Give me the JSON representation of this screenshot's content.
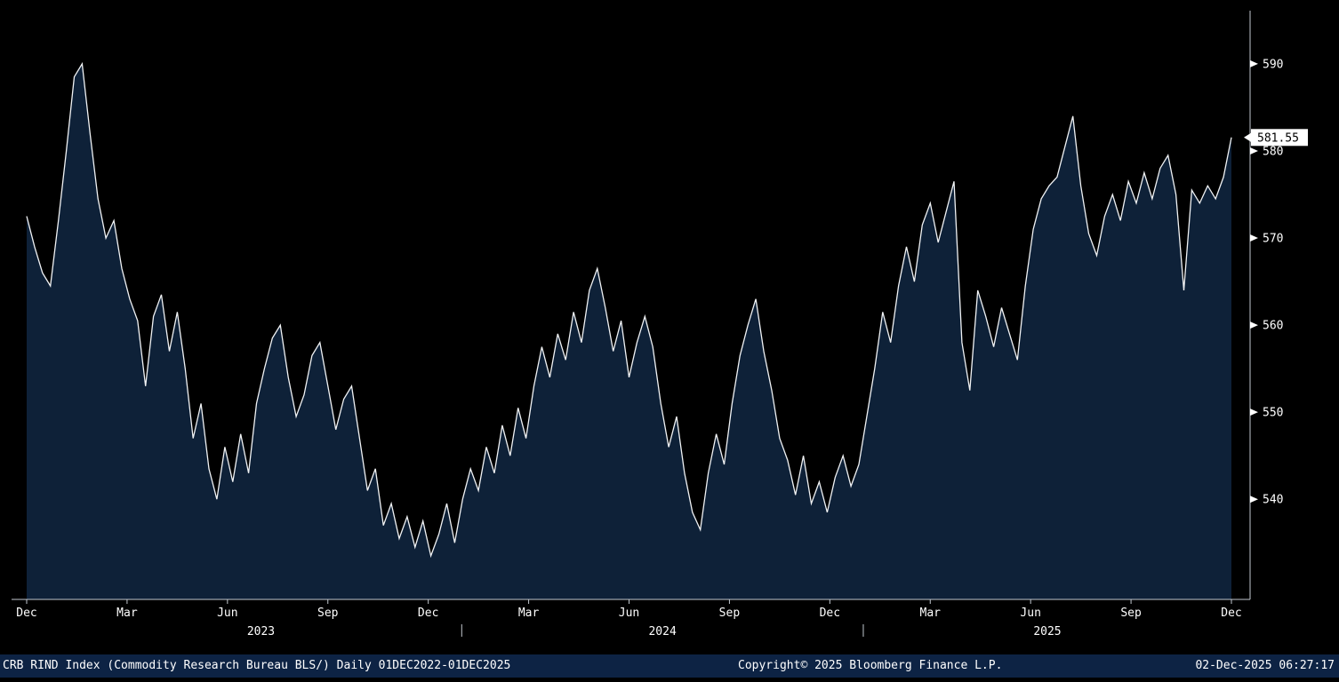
{
  "chart_data": {
    "type": "line",
    "title": "CRB RIND Index (Commodity Research Bureau BLS/) Daily 01DEC2022-01DEC2025",
    "grid": false,
    "legend_position": "none",
    "ylim": [
      528.5,
      595.5
    ],
    "y_ticks": [
      540,
      550,
      560,
      570,
      580,
      590
    ],
    "x_tick_labels": [
      "Dec",
      "Mar",
      "Jun",
      "Sep",
      "Dec",
      "Mar",
      "Jun",
      "Sep",
      "Dec",
      "Mar",
      "Jun",
      "Sep",
      "Dec"
    ],
    "x_tick_month_offsets": [
      0,
      3,
      6,
      9,
      12,
      15,
      18,
      21,
      24,
      27,
      30,
      33,
      36
    ],
    "year_labels": [
      {
        "text": "2023",
        "center_month": 7
      },
      {
        "text": "2024",
        "center_month": 19
      },
      {
        "text": "2025",
        "center_month": 30.5
      }
    ],
    "year_separator_months": [
      13,
      25
    ],
    "total_months": 36,
    "last_value": 581.55,
    "last_value_label": "581.55",
    "series": [
      {
        "name": "CRB RIND Index",
        "values": [
          572.5,
          569.0,
          566.0,
          564.5,
          572.0,
          580.0,
          588.5,
          590.0,
          582.0,
          574.5,
          570.0,
          572.0,
          566.5,
          563.0,
          560.5,
          553.0,
          561.0,
          563.5,
          557.0,
          561.5,
          555.0,
          547.0,
          551.0,
          543.5,
          540.0,
          546.0,
          542.0,
          547.5,
          543.0,
          551.0,
          555.0,
          558.5,
          560.0,
          554.0,
          549.5,
          552.0,
          556.5,
          558.0,
          553.0,
          548.0,
          551.5,
          553.0,
          547.0,
          541.0,
          543.5,
          537.0,
          539.5,
          535.5,
          538.0,
          534.5,
          537.5,
          533.5,
          536.0,
          539.5,
          535.0,
          540.0,
          543.5,
          541.0,
          546.0,
          543.0,
          548.5,
          545.0,
          550.5,
          547.0,
          553.0,
          557.5,
          554.0,
          559.0,
          556.0,
          561.5,
          558.0,
          564.0,
          566.5,
          562.0,
          557.0,
          560.5,
          554.0,
          558.0,
          561.0,
          557.5,
          551.0,
          546.0,
          549.5,
          543.0,
          538.5,
          536.5,
          543.0,
          547.5,
          544.0,
          551.0,
          556.5,
          560.0,
          563.0,
          557.0,
          552.5,
          547.0,
          544.5,
          540.5,
          545.0,
          539.5,
          542.0,
          538.5,
          542.5,
          545.0,
          541.5,
          544.0,
          549.5,
          555.0,
          561.5,
          558.0,
          564.5,
          569.0,
          565.0,
          571.5,
          574.0,
          569.5,
          573.0,
          576.5,
          558.0,
          552.5,
          564.0,
          561.0,
          557.5,
          562.0,
          559.0,
          556.0,
          564.5,
          571.0,
          574.5,
          576.0,
          577.0,
          580.5,
          584.0,
          576.0,
          570.5,
          568.0,
          572.5,
          575.0,
          572.0,
          576.5,
          574.0,
          577.5,
          574.5,
          578.0,
          579.5,
          575.0,
          564.0,
          575.5,
          574.0,
          576.0,
          574.5,
          577.0,
          581.55
        ]
      }
    ]
  },
  "footer": {
    "description": "CRB RIND Index (Commodity Research Bureau BLS/) Daily 01DEC2022-01DEC2025",
    "copyright": "Copyright© 2025 Bloomberg Finance L.P.",
    "timestamp": "02-Dec-2025 06:27:17"
  },
  "colors": {
    "background": "#000000",
    "area_fill": "#0e2138",
    "line": "#f0f2f4",
    "axis": "#c2c8cf",
    "text": "#ffffff",
    "tag_bg": "#ffffff",
    "tag_text": "#000000",
    "footer_bg": "#0d2344"
  }
}
